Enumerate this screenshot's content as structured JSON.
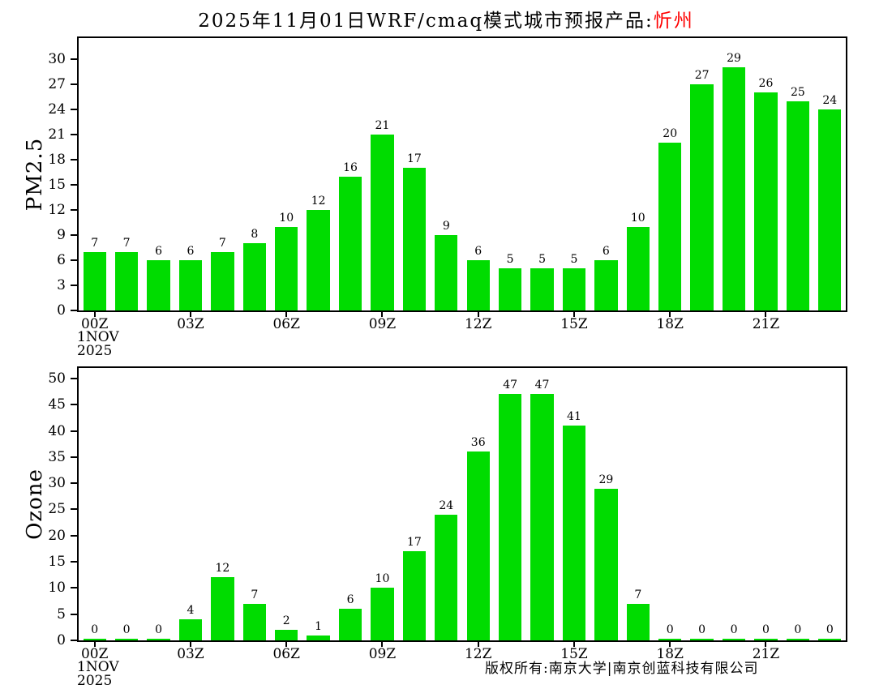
{
  "title": {
    "main": "2025年11月01日WRF/cmaq模式城市预报产品:",
    "highlight": "忻州",
    "highlight_color": "#ff0000"
  },
  "colors": {
    "bar": "#00dc00",
    "axis": "#000000"
  },
  "date_label": {
    "line1": "1NOV",
    "line2": "2025"
  },
  "footer": {
    "copyright": "版权所有:南京大学|南京创蓝科技有限公司"
  },
  "chart_data": [
    {
      "type": "bar",
      "ylabel": "PM2.5",
      "values": [
        7,
        7,
        6,
        6,
        7,
        8,
        10,
        12,
        16,
        21,
        17,
        9,
        6,
        5,
        5,
        5,
        6,
        10,
        20,
        27,
        29,
        26,
        25,
        24
      ],
      "yticks": [
        0,
        3,
        6,
        9,
        12,
        15,
        18,
        21,
        24,
        27,
        30
      ],
      "ylim": [
        0,
        30
      ],
      "axis_max": 32.5,
      "xtick_labels": [
        "00Z",
        "03Z",
        "06Z",
        "09Z",
        "12Z",
        "15Z",
        "18Z",
        "21Z"
      ],
      "xtick_positions": [
        0,
        3,
        6,
        9,
        12,
        15,
        18,
        21
      ],
      "grid": "off",
      "legend": "none"
    },
    {
      "type": "bar",
      "ylabel": "Ozone",
      "values": [
        0,
        0,
        0,
        4,
        12,
        7,
        2,
        1,
        6,
        10,
        17,
        24,
        36,
        47,
        47,
        41,
        29,
        7,
        0,
        0,
        0,
        0,
        0,
        0
      ],
      "yticks": [
        0,
        5,
        10,
        15,
        20,
        25,
        30,
        35,
        40,
        45,
        50
      ],
      "ylim": [
        0,
        50
      ],
      "axis_max": 52,
      "xtick_labels": [
        "00Z",
        "03Z",
        "06Z",
        "09Z",
        "12Z",
        "15Z",
        "18Z",
        "21Z"
      ],
      "xtick_positions": [
        0,
        3,
        6,
        9,
        12,
        15,
        18,
        21
      ],
      "grid": "off",
      "legend": "none"
    }
  ]
}
